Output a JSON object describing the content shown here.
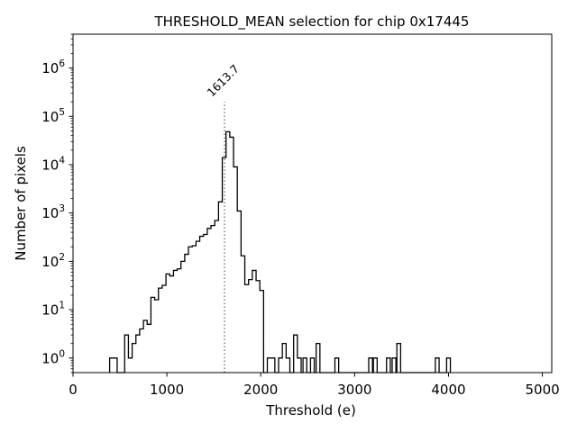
{
  "chart_data": {
    "type": "histogram",
    "title": "THRESHOLD_MEAN selection for chip 0x17445",
    "xlabel": "Threshold (e)",
    "ylabel": "Number of pixels",
    "xlim": [
      0,
      5100
    ],
    "ylim": [
      0.5,
      5000000
    ],
    "yscale": "log",
    "x_ticks": [
      0,
      1000,
      2000,
      3000,
      4000,
      5000
    ],
    "x_tick_labels": [
      "0",
      "1000",
      "2000",
      "3000",
      "4000",
      "5000"
    ],
    "y_ticks": [
      1,
      10,
      100,
      1000,
      10000,
      100000,
      1000000
    ],
    "y_tick_labels": [
      {
        "base": "10",
        "exp": "0"
      },
      {
        "base": "10",
        "exp": "1"
      },
      {
        "base": "10",
        "exp": "2"
      },
      {
        "base": "10",
        "exp": "3"
      },
      {
        "base": "10",
        "exp": "4"
      },
      {
        "base": "10",
        "exp": "5"
      },
      {
        "base": "10",
        "exp": "6"
      }
    ],
    "bin_width": 40,
    "bins": [
      [
        390,
        1
      ],
      [
        430,
        1
      ],
      [
        510,
        0
      ],
      [
        550,
        3
      ],
      [
        590,
        1
      ],
      [
        630,
        2
      ],
      [
        670,
        3
      ],
      [
        710,
        4
      ],
      [
        750,
        6
      ],
      [
        790,
        5
      ],
      [
        830,
        18
      ],
      [
        870,
        16
      ],
      [
        910,
        28
      ],
      [
        950,
        32
      ],
      [
        990,
        55
      ],
      [
        1030,
        50
      ],
      [
        1070,
        65
      ],
      [
        1110,
        70
      ],
      [
        1150,
        100
      ],
      [
        1190,
        140
      ],
      [
        1230,
        200
      ],
      [
        1270,
        210
      ],
      [
        1310,
        260
      ],
      [
        1350,
        330
      ],
      [
        1390,
        360
      ],
      [
        1430,
        480
      ],
      [
        1470,
        550
      ],
      [
        1510,
        700
      ],
      [
        1550,
        1700
      ],
      [
        1590,
        14000
      ],
      [
        1630,
        48000
      ],
      [
        1670,
        37000
      ],
      [
        1710,
        9000
      ],
      [
        1750,
        1100
      ],
      [
        1790,
        130
      ],
      [
        1830,
        33
      ],
      [
        1870,
        42
      ],
      [
        1910,
        65
      ],
      [
        1950,
        40
      ],
      [
        1990,
        25
      ],
      [
        2030,
        0
      ],
      [
        2070,
        1
      ],
      [
        2110,
        1
      ],
      [
        2190,
        1
      ],
      [
        2230,
        2
      ],
      [
        2270,
        1
      ],
      [
        2350,
        3
      ],
      [
        2390,
        1
      ],
      [
        2450,
        1
      ],
      [
        2530,
        1
      ],
      [
        2590,
        2
      ],
      [
        2790,
        1
      ],
      [
        3150,
        1
      ],
      [
        3200,
        1
      ],
      [
        3340,
        1
      ],
      [
        3400,
        1
      ],
      [
        3450,
        2
      ],
      [
        3860,
        1
      ],
      [
        3980,
        1
      ]
    ],
    "series_color": "#000000",
    "annotations": [
      {
        "type": "vline",
        "x": 1613.7,
        "style": "dotted",
        "color": "#808080",
        "ymax": 200000,
        "label": "1613.7"
      }
    ],
    "grid": false,
    "legend": "none"
  }
}
